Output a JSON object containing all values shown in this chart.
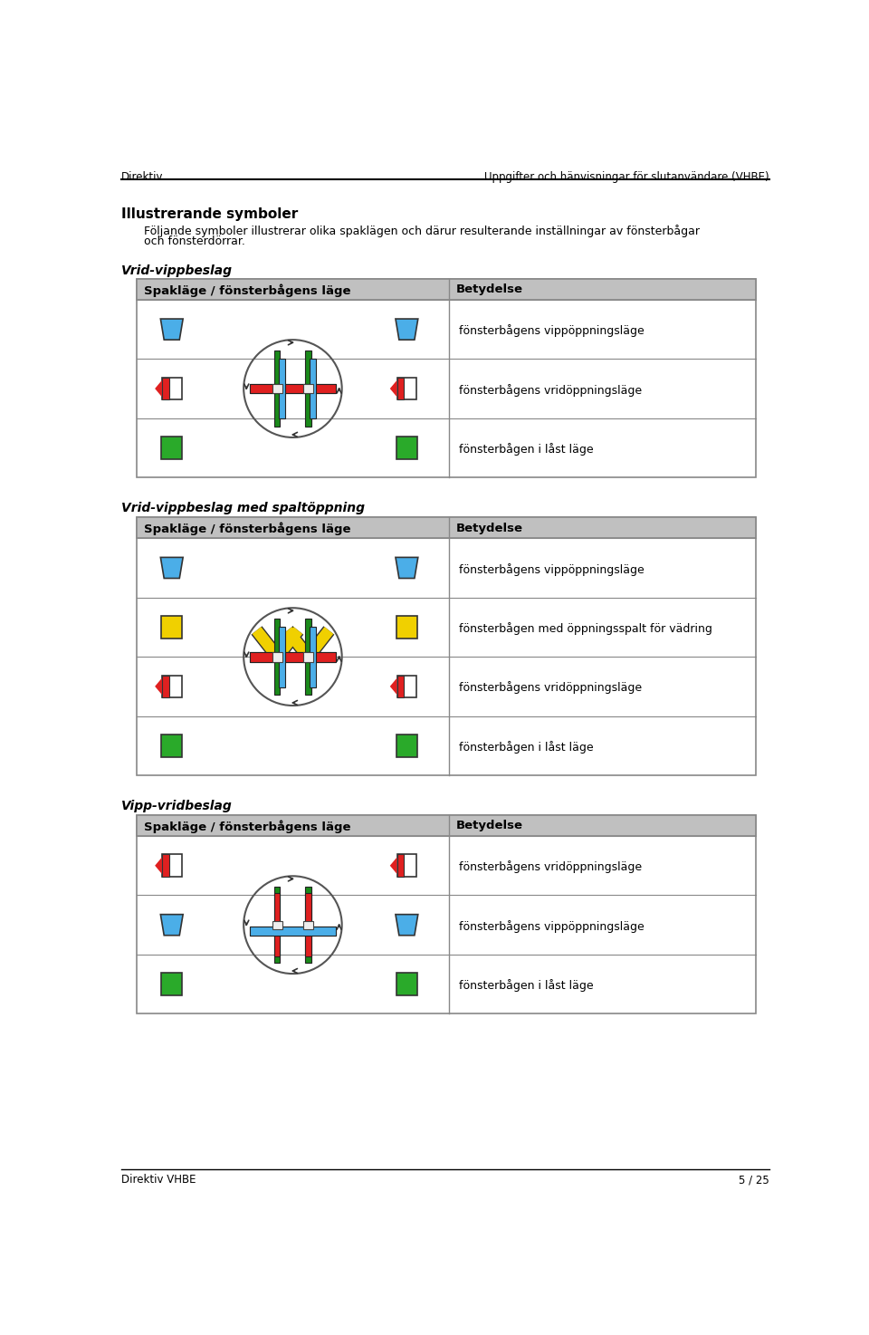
{
  "header_left": "Direktiv",
  "header_right": "Uppgifter och hänvisningar för slutanvändare (VHBE)",
  "footer_left": "Direktiv VHBE",
  "footer_right": "5 / 25",
  "section_title": "Illustrerande symboler",
  "section_body_line1": "Följande symboler illustrerar olika spaklägen och därur resulterande inställningar av fönsterbågar",
  "section_body_line2": "och fönsterdörrar.",
  "table1_title": "Vrid-vippbeslag",
  "table1_col1": "Spakläge / fönsterbågens läge",
  "table1_col2": "Betydelse",
  "table1_rows": [
    {
      "meaning": "fönsterbågens vippöppningsläge",
      "color": "#4baee8",
      "shape": "trap_top"
    },
    {
      "meaning": "fönsterbågens vridöppningsläge",
      "color": "#e02020",
      "shape": "arrow_left"
    },
    {
      "meaning": "fönsterbågen i låst läge",
      "color": "#2aaa2a",
      "shape": "rect"
    }
  ],
  "table2_title": "Vrid-vippbeslag med spaltöppning",
  "table2_col1": "Spakläge / fönsterbågens läge",
  "table2_col2": "Betydelse",
  "table2_rows": [
    {
      "meaning": "fönsterbågens vippöppningsläge",
      "color": "#4baee8",
      "shape": "trap_top"
    },
    {
      "meaning": "fönsterbågen med öppningsspalt för vädring",
      "color": "#f0d000",
      "shape": "rect"
    },
    {
      "meaning": "fönsterbågens vridöppningsläge",
      "color": "#e02020",
      "shape": "arrow_left"
    },
    {
      "meaning": "fönsterbågen i låst läge",
      "color": "#2aaa2a",
      "shape": "rect"
    }
  ],
  "table3_title": "Vipp-vridbeslag",
  "table3_col1": "Spakläge / fönsterbågens läge",
  "table3_col2": "Betydelse",
  "table3_rows": [
    {
      "meaning": "fönsterbågens vridöppningsläge",
      "color": "#e02020",
      "shape": "arrow_left"
    },
    {
      "meaning": "fönsterbågens vippöppningsläge",
      "color": "#4baee8",
      "shape": "trap_top"
    },
    {
      "meaning": "fönsterbågen i låst läge",
      "color": "#2aaa2a",
      "shape": "rect"
    }
  ],
  "bg_color": "#ffffff",
  "table_header_bg": "#c0c0c0",
  "table_border_color": "#888888",
  "blue": "#4baee8",
  "red": "#e02020",
  "green": "#2aaa2a",
  "yellow": "#f0d000",
  "dark_green": "#1a8a1a",
  "white": "#ffffff"
}
